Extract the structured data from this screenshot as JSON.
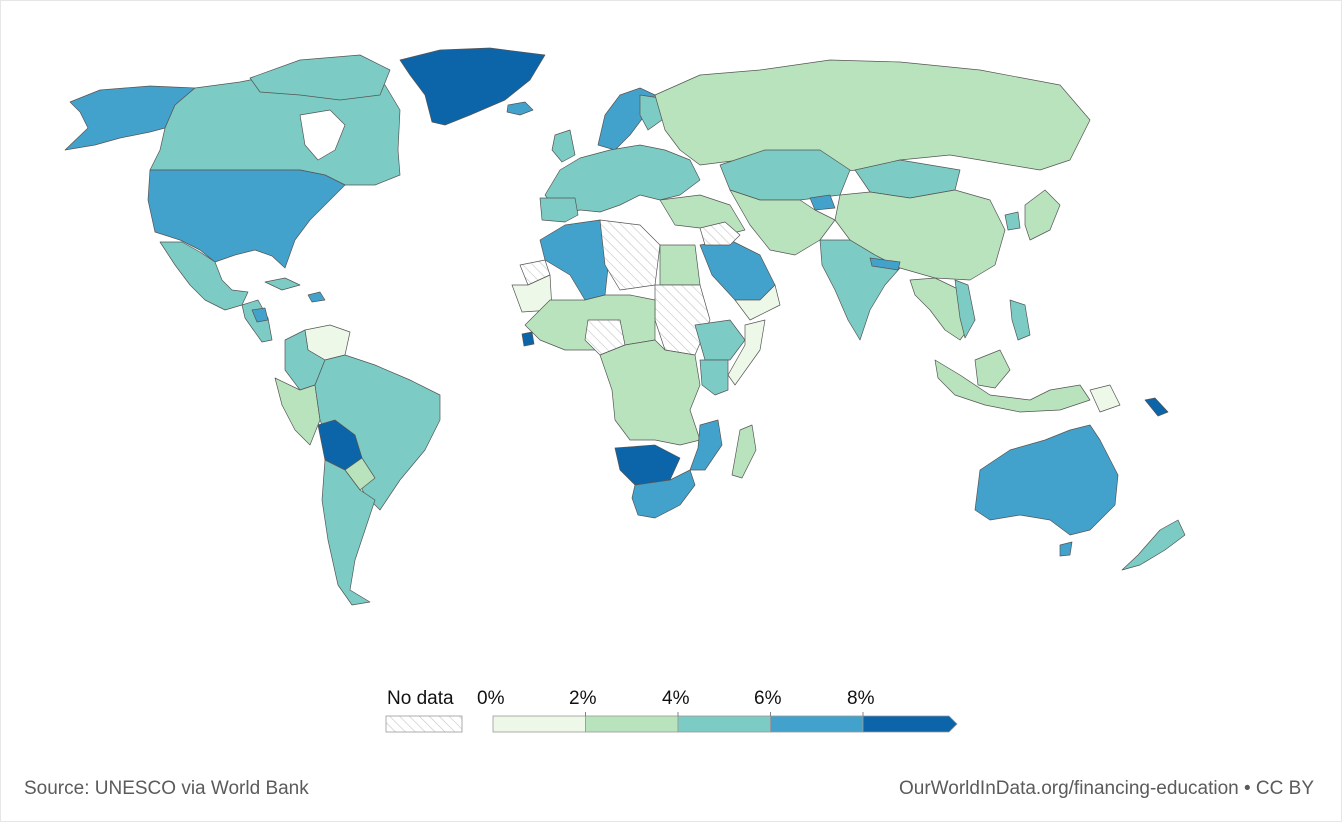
{
  "legend": {
    "no_data_label": "No data",
    "ticks": [
      "0%",
      "2%",
      "4%",
      "6%",
      "8%"
    ],
    "bins": [
      {
        "from": 0,
        "to": 2,
        "color": "#eef8e8"
      },
      {
        "from": 2,
        "to": 4,
        "color": "#b8e3bc"
      },
      {
        "from": 4,
        "to": 6,
        "color": "#7ccbc4"
      },
      {
        "from": 6,
        "to": 8,
        "color": "#43a2cc"
      },
      {
        "from": 8,
        "to": null,
        "color": "#0b65a8"
      }
    ],
    "no_data_color": "#ffffff"
  },
  "colors": {
    "no_data": "#ffffff",
    "bin_0_2": "#eef8e8",
    "bin_2_4": "#b8e3bc",
    "bin_4_6": "#7ccbc4",
    "bin_6_8": "#43a2cc",
    "bin_8_plus": "#0b65a8"
  },
  "footer": {
    "source": "Source: UNESCO via World Bank",
    "credit": "OurWorldInData.org/financing-education • CC BY"
  }
}
